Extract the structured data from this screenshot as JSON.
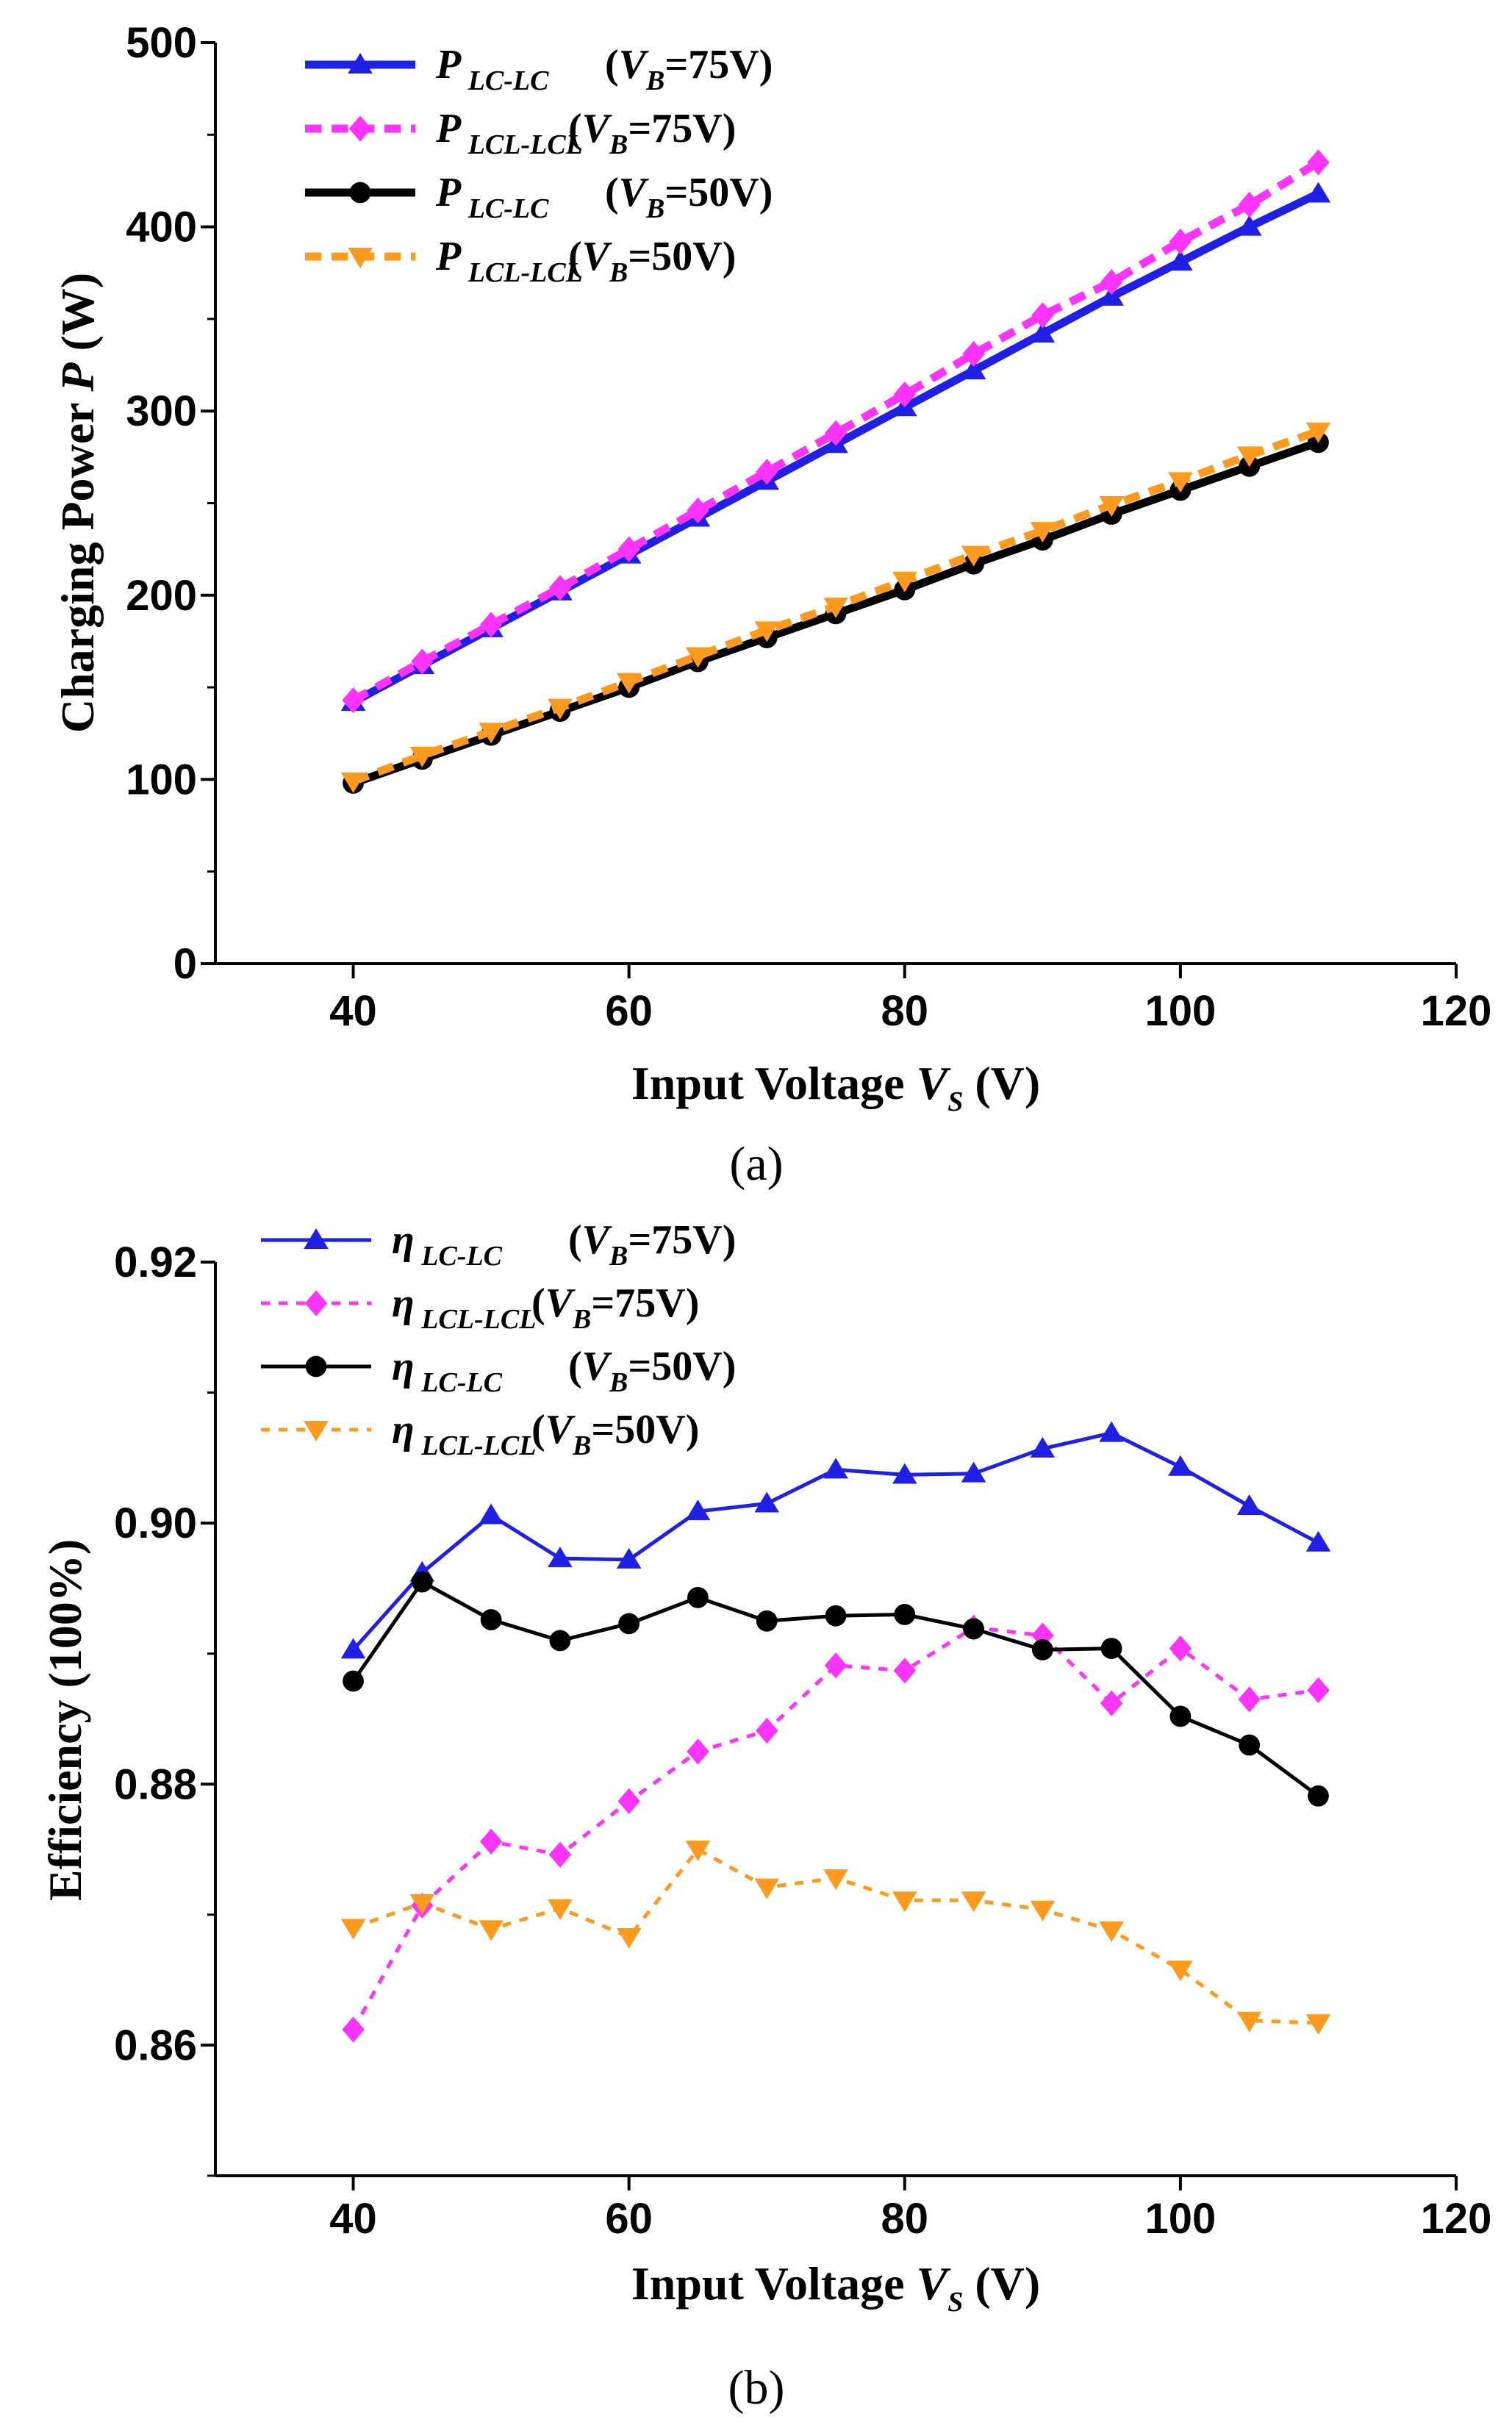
{
  "figure": {
    "label_a": "(a)",
    "label_b": "(b)"
  },
  "colors": {
    "blue": "#1f1fe6",
    "magenta": "#ff33ff",
    "black": "#000000",
    "orange": "#ff9a1f"
  },
  "chart_data": [
    {
      "type": "line",
      "panel": "(a)",
      "title": "",
      "xlabel_main": "Input Voltage ",
      "xlabel_sym": "V",
      "xlabel_sub": "S",
      "xlabel_unit": " (V)",
      "ylabel_main": "Charging Power ",
      "ylabel_sym": "P",
      "ylabel_unit": " (W)",
      "xlim": [
        30,
        120
      ],
      "ylim": [
        0,
        500
      ],
      "xticks": [
        40,
        60,
        80,
        100,
        120
      ],
      "yticks": [
        0,
        100,
        200,
        300,
        400,
        500
      ],
      "xtick_labels": [
        "40",
        "60",
        "80",
        "100",
        "120"
      ],
      "ytick_labels": [
        "0",
        "100",
        "200",
        "300",
        "400",
        "500"
      ],
      "legend_position": "top-left",
      "x": [
        40,
        45,
        50,
        55,
        60,
        65,
        70,
        75,
        80,
        85,
        90,
        95,
        100,
        105,
        110
      ],
      "series": [
        {
          "name": "P_LC-LC (V_B=75V)",
          "sym": "P",
          "sub": "LC-LC",
          "cond_pre": "(",
          "cond_sym": "V",
          "cond_sub": "B",
          "cond_post": "=75V)",
          "color": "#1f1fe6",
          "marker": "triangle-up",
          "dash": "solid",
          "values": [
            142,
            162,
            182,
            202,
            222,
            242,
            262,
            282,
            302,
            322,
            342,
            362,
            381,
            400,
            418
          ]
        },
        {
          "name": "P_LCL-LCL (V_B=75V)",
          "sym": "P",
          "sub": "LCL-LCL",
          "cond_pre": "(",
          "cond_sym": "V",
          "cond_sub": "B",
          "cond_post": "=75V)",
          "color": "#ff33ff",
          "marker": "diamond",
          "dash": "dashed",
          "values": [
            143,
            164,
            184,
            204,
            225,
            246,
            267,
            288,
            309,
            331,
            352,
            370,
            392,
            412,
            435
          ]
        },
        {
          "name": "P_LC-LC (V_B=50V)",
          "sym": "P",
          "sub": "LC-LC",
          "cond_pre": "(",
          "cond_sym": "V",
          "cond_sub": "B",
          "cond_post": "=50V)",
          "color": "#000000",
          "marker": "circle",
          "dash": "solid",
          "values": [
            98,
            111,
            124,
            137,
            150,
            164,
            177,
            190,
            203,
            217,
            230,
            244,
            257,
            270,
            283
          ]
        },
        {
          "name": "P_LCL-LCL (V_B=50V)",
          "sym": "P",
          "sub": "LCL-LCL",
          "cond_pre": "(",
          "cond_sym": "V",
          "cond_sub": "B",
          "cond_post": "=50V)",
          "color": "#ff9a1f",
          "marker": "triangle-down",
          "dash": "dashed",
          "values": [
            99,
            113,
            126,
            139,
            153,
            167,
            181,
            194,
            208,
            222,
            235,
            249,
            262,
            276,
            289
          ]
        }
      ]
    },
    {
      "type": "line",
      "panel": "(b)",
      "title": "",
      "xlabel_main": "Input Voltage ",
      "xlabel_sym": "V",
      "xlabel_sub": "S",
      "xlabel_unit": " (V)",
      "ylabel_main": "Efficiency (100%)",
      "ylabel_sym": "",
      "ylabel_unit": "",
      "xlim": [
        30,
        120
      ],
      "ylim": [
        0.85,
        0.92
      ],
      "xticks": [
        40,
        60,
        80,
        100,
        120
      ],
      "yticks": [
        0.86,
        0.88,
        0.9,
        0.92
      ],
      "xtick_labels": [
        "40",
        "60",
        "80",
        "100",
        "120"
      ],
      "ytick_labels": [
        "0.86",
        "0.88",
        "0.90",
        "0.92"
      ],
      "legend_position": "top-left",
      "x": [
        40,
        45,
        50,
        55,
        60,
        65,
        70,
        75,
        80,
        85,
        90,
        95,
        100,
        105,
        110
      ],
      "series": [
        {
          "name": "η_LC-LC (V_B=75V)",
          "sym": "η",
          "sub": "LC-LC",
          "cond_pre": "(",
          "cond_sym": "V",
          "cond_sub": "B",
          "cond_post": "=75V)",
          "color": "#1f1fe6",
          "marker": "triangle-up",
          "dash": "solid",
          "values": [
            0.8903,
            0.8962,
            0.9006,
            0.8973,
            0.8972,
            0.9009,
            0.9015,
            0.9041,
            0.9037,
            0.9038,
            0.9057,
            0.9069,
            0.9043,
            0.9013,
            0.8985
          ]
        },
        {
          "name": "η_LCL-LCL (V_B=75V)",
          "sym": "η",
          "sub": "LCL-LCL",
          "cond_pre": "(",
          "cond_sym": "V",
          "cond_sub": "B",
          "cond_post": "=75V)",
          "color": "#ff33ff",
          "marker": "diamond",
          "dash": "dashed",
          "values": [
            0.8612,
            0.8707,
            0.8756,
            0.8746,
            0.8787,
            0.8825,
            0.8841,
            0.8891,
            0.8887,
            0.892,
            0.8914,
            0.8862,
            0.8904,
            0.8865,
            0.8872
          ]
        },
        {
          "name": "η_LC-LC (V_B=50V)",
          "sym": "η",
          "sub": "LC-LC",
          "cond_pre": "(",
          "cond_sym": "V",
          "cond_sub": "B",
          "cond_post": "=50V)",
          "color": "#000000",
          "marker": "circle",
          "dash": "solid",
          "values": [
            0.8879,
            0.8955,
            0.8926,
            0.891,
            0.8923,
            0.8943,
            0.8925,
            0.8929,
            0.893,
            0.8919,
            0.8903,
            0.8904,
            0.8852,
            0.883,
            0.8791
          ]
        },
        {
          "name": "η_LCL-LCL (V_B=50V)",
          "sym": "η",
          "sub": "LCL-LCL",
          "cond_pre": "(",
          "cond_sym": "V",
          "cond_sub": "B",
          "cond_post": "=50V)",
          "color": "#ff9a1f",
          "marker": "triangle-down",
          "dash": "dashed",
          "values": [
            0.869,
            0.8709,
            0.8689,
            0.8705,
            0.8683,
            0.875,
            0.8721,
            0.8728,
            0.8711,
            0.8711,
            0.8704,
            0.8688,
            0.8658,
            0.8619,
            0.8617
          ]
        }
      ]
    }
  ]
}
